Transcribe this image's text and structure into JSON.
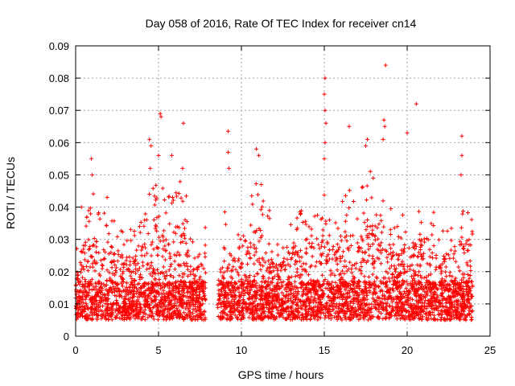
{
  "chart_data": {
    "type": "scatter",
    "title": "Day 058 of 2016, Rate Of TEC Index for receiver cn14",
    "xlabel": "GPS time / hours",
    "ylabel": "ROTI / TECUs",
    "xlim": [
      0,
      24
    ],
    "ylim": [
      0,
      0.09
    ],
    "xticks": [
      "0",
      "5",
      "10",
      "15",
      "20",
      "25"
    ],
    "yticks": [
      "0",
      "0.01",
      "0.02",
      "0.03",
      "0.04",
      "0.05",
      "0.06",
      "0.07",
      "0.08",
      "0.09"
    ],
    "grid": true,
    "marker": "+",
    "color": "#ff0000",
    "data_gap_hours": [
      7.85,
      8.55
    ],
    "envelope": [
      {
        "x": 0.0,
        "y": 0.03
      },
      {
        "x": 0.5,
        "y": 0.041
      },
      {
        "x": 1.0,
        "y": 0.046
      },
      {
        "x": 1.5,
        "y": 0.038
      },
      {
        "x": 2.0,
        "y": 0.043
      },
      {
        "x": 2.5,
        "y": 0.034
      },
      {
        "x": 3.0,
        "y": 0.035
      },
      {
        "x": 3.5,
        "y": 0.033
      },
      {
        "x": 4.0,
        "y": 0.038
      },
      {
        "x": 4.5,
        "y": 0.045
      },
      {
        "x": 5.0,
        "y": 0.055
      },
      {
        "x": 5.5,
        "y": 0.045
      },
      {
        "x": 6.0,
        "y": 0.048
      },
      {
        "x": 6.5,
        "y": 0.053
      },
      {
        "x": 7.0,
        "y": 0.03
      },
      {
        "x": 7.5,
        "y": 0.027
      },
      {
        "x": 7.8,
        "y": 0.042
      },
      {
        "x": 8.7,
        "y": 0.02
      },
      {
        "x": 9.0,
        "y": 0.04
      },
      {
        "x": 9.5,
        "y": 0.031
      },
      {
        "x": 10.0,
        "y": 0.033
      },
      {
        "x": 10.5,
        "y": 0.04
      },
      {
        "x": 11.0,
        "y": 0.055
      },
      {
        "x": 11.5,
        "y": 0.042
      },
      {
        "x": 12.0,
        "y": 0.036
      },
      {
        "x": 12.5,
        "y": 0.032
      },
      {
        "x": 13.0,
        "y": 0.037
      },
      {
        "x": 13.5,
        "y": 0.04
      },
      {
        "x": 14.0,
        "y": 0.042
      },
      {
        "x": 14.5,
        "y": 0.038
      },
      {
        "x": 15.0,
        "y": 0.05
      },
      {
        "x": 15.5,
        "y": 0.038
      },
      {
        "x": 16.0,
        "y": 0.042
      },
      {
        "x": 16.5,
        "y": 0.048
      },
      {
        "x": 17.0,
        "y": 0.042
      },
      {
        "x": 17.5,
        "y": 0.05
      },
      {
        "x": 18.0,
        "y": 0.052
      },
      {
        "x": 18.5,
        "y": 0.045
      },
      {
        "x": 19.0,
        "y": 0.04
      },
      {
        "x": 19.5,
        "y": 0.036
      },
      {
        "x": 20.0,
        "y": 0.042
      },
      {
        "x": 20.5,
        "y": 0.04
      },
      {
        "x": 21.0,
        "y": 0.045
      },
      {
        "x": 21.5,
        "y": 0.04
      },
      {
        "x": 22.0,
        "y": 0.036
      },
      {
        "x": 22.5,
        "y": 0.034
      },
      {
        "x": 23.0,
        "y": 0.042
      },
      {
        "x": 23.5,
        "y": 0.04
      },
      {
        "x": 23.95,
        "y": 0.038
      }
    ],
    "outliers": [
      {
        "x": 0.35,
        "y": 0.04
      },
      {
        "x": 0.95,
        "y": 0.055
      },
      {
        "x": 1.0,
        "y": 0.05
      },
      {
        "x": 1.9,
        "y": 0.043
      },
      {
        "x": 4.45,
        "y": 0.061
      },
      {
        "x": 4.55,
        "y": 0.059
      },
      {
        "x": 4.5,
        "y": 0.052
      },
      {
        "x": 4.45,
        "y": 0.044
      },
      {
        "x": 5.1,
        "y": 0.069
      },
      {
        "x": 5.15,
        "y": 0.068
      },
      {
        "x": 5.0,
        "y": 0.056
      },
      {
        "x": 5.8,
        "y": 0.056
      },
      {
        "x": 5.85,
        "y": 0.043
      },
      {
        "x": 6.5,
        "y": 0.066
      },
      {
        "x": 6.45,
        "y": 0.052
      },
      {
        "x": 9.2,
        "y": 0.0635
      },
      {
        "x": 9.2,
        "y": 0.057
      },
      {
        "x": 9.25,
        "y": 0.052
      },
      {
        "x": 10.9,
        "y": 0.058
      },
      {
        "x": 11.05,
        "y": 0.056
      },
      {
        "x": 11.2,
        "y": 0.047
      },
      {
        "x": 15.05,
        "y": 0.08
      },
      {
        "x": 15.0,
        "y": 0.075
      },
      {
        "x": 15.05,
        "y": 0.07
      },
      {
        "x": 15.1,
        "y": 0.066
      },
      {
        "x": 15.05,
        "y": 0.06
      },
      {
        "x": 15.0,
        "y": 0.055
      },
      {
        "x": 16.5,
        "y": 0.065
      },
      {
        "x": 17.6,
        "y": 0.061
      },
      {
        "x": 17.5,
        "y": 0.059
      },
      {
        "x": 18.7,
        "y": 0.084
      },
      {
        "x": 18.6,
        "y": 0.067
      },
      {
        "x": 18.65,
        "y": 0.065
      },
      {
        "x": 18.55,
        "y": 0.061
      },
      {
        "x": 20.0,
        "y": 0.063
      },
      {
        "x": 20.55,
        "y": 0.072
      },
      {
        "x": 23.3,
        "y": 0.062
      },
      {
        "x": 23.3,
        "y": 0.056
      },
      {
        "x": 23.25,
        "y": 0.05
      }
    ]
  }
}
